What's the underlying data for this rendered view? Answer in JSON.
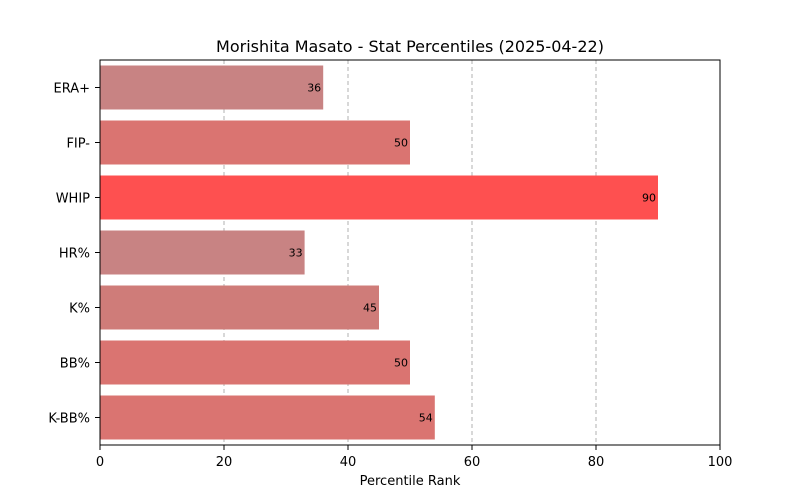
{
  "chart_data": {
    "type": "bar",
    "orientation": "horizontal",
    "title": "Morishita Masato - Stat Percentiles (2025-04-22)",
    "xlabel": "Percentile Rank",
    "ylabel": "",
    "xlim": [
      0,
      100
    ],
    "xticks": [
      0,
      20,
      40,
      60,
      80,
      100
    ],
    "grid": "x-axis dashed",
    "categories": [
      "ERA+",
      "FIP-",
      "WHIP",
      "HR%",
      "K%",
      "BB%",
      "K-BB%"
    ],
    "values": [
      36,
      50,
      90,
      33,
      45,
      50,
      54
    ],
    "colors": [
      "#c88383",
      "#da7471",
      "#fe5050",
      "#c88383",
      "#cf7c79",
      "#da7471",
      "#da7471"
    ]
  }
}
